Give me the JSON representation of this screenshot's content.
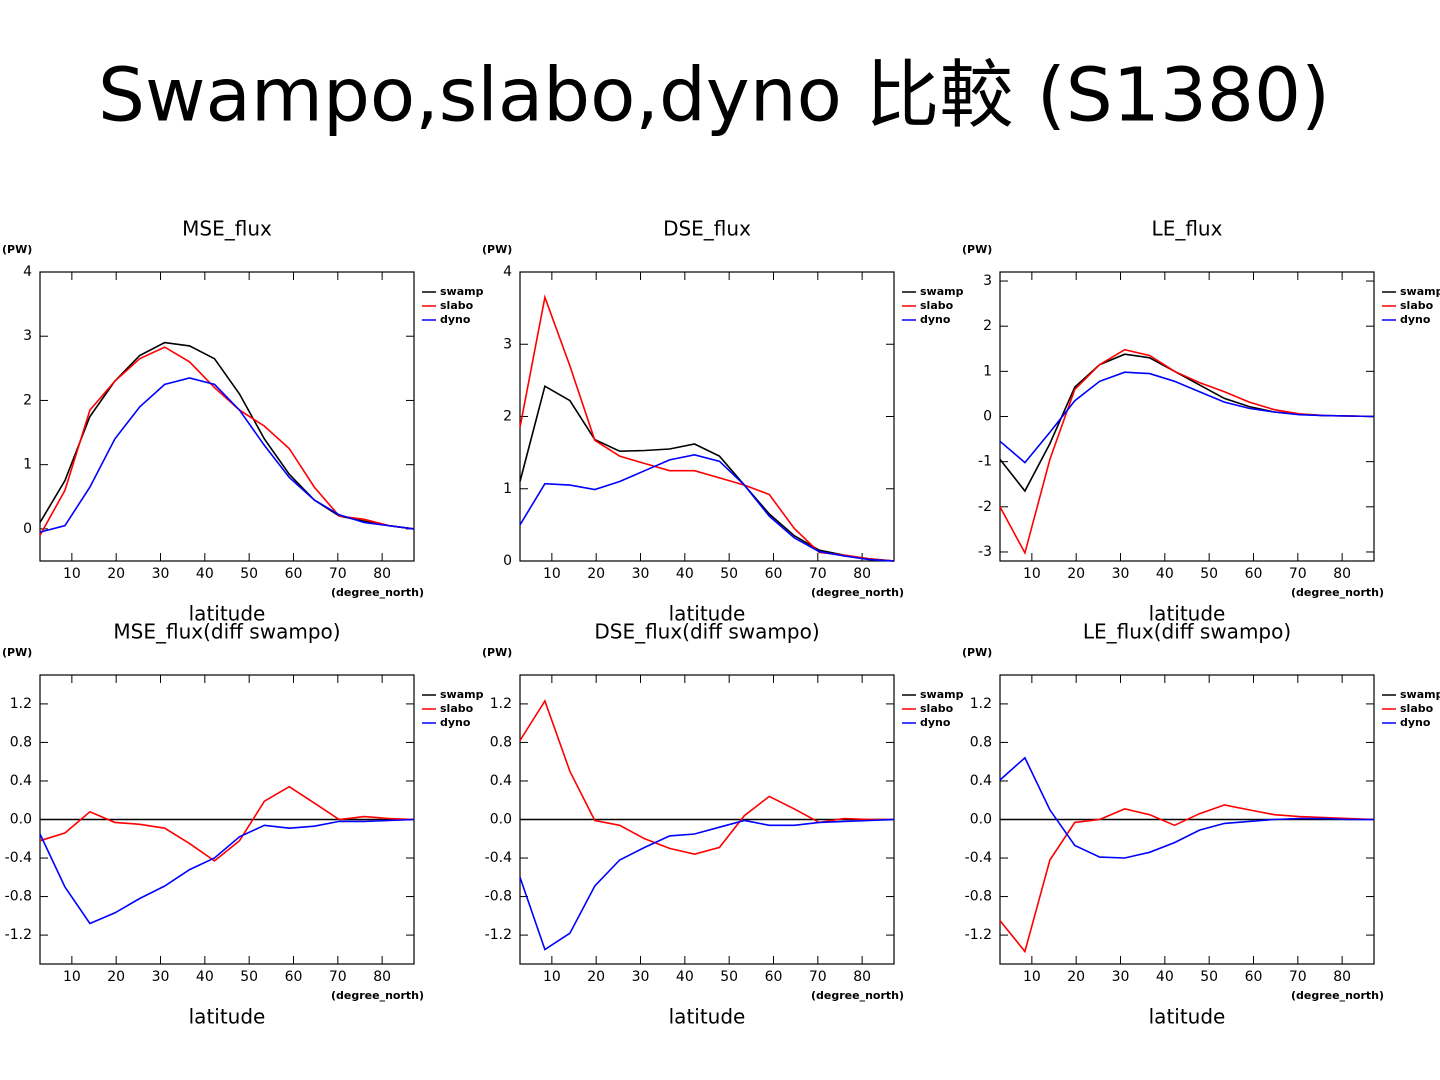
{
  "title": "Swampo,slabo,dyno 比較 (S1380)",
  "chart_data": [
    {
      "type": "line",
      "title": "MSE_flux",
      "y_unit": "(PW)",
      "x_label": "latitude",
      "x_unit": "(degree_north)",
      "x": [
        2.8125,
        8.4375,
        14.0625,
        19.6875,
        25.3125,
        30.9375,
        36.5625,
        42.1875,
        47.8125,
        53.4375,
        59.0625,
        64.6875,
        70.3125,
        75.9375,
        81.5625,
        87.1875
      ],
      "xlim": [
        2.8125,
        87.1875
      ],
      "xticks": [
        10,
        20,
        30,
        40,
        50,
        60,
        70,
        80
      ],
      "ylim": [
        -0.5,
        4
      ],
      "yticks": [
        0,
        1,
        2,
        3,
        4
      ],
      "series": [
        {
          "name": "swamp",
          "color": "#000000",
          "values": [
            0.1,
            0.75,
            1.75,
            2.3,
            2.7,
            2.9,
            2.85,
            2.65,
            2.1,
            1.4,
            0.85,
            0.45,
            0.2,
            0.12,
            0.05,
            0.0
          ]
        },
        {
          "name": "slabo",
          "color": "#ff0000",
          "values": [
            -0.1,
            0.6,
            1.85,
            2.3,
            2.65,
            2.83,
            2.6,
            2.2,
            1.85,
            1.6,
            1.25,
            0.65,
            0.2,
            0.15,
            0.05,
            0.0
          ]
        },
        {
          "name": "dyno",
          "color": "#0000ff",
          "values": [
            -0.05,
            0.05,
            0.65,
            1.4,
            1.9,
            2.25,
            2.35,
            2.25,
            1.85,
            1.3,
            0.8,
            0.45,
            0.22,
            0.1,
            0.05,
            0.0
          ]
        }
      ]
    },
    {
      "type": "line",
      "title": "DSE_flux",
      "y_unit": "(PW)",
      "x_label": "latitude",
      "x_unit": "(degree_north)",
      "x": [
        2.8125,
        8.4375,
        14.0625,
        19.6875,
        25.3125,
        30.9375,
        36.5625,
        42.1875,
        47.8125,
        53.4375,
        59.0625,
        64.6875,
        70.3125,
        75.9375,
        81.5625,
        87.1875
      ],
      "xlim": [
        2.8125,
        87.1875
      ],
      "xticks": [
        10,
        20,
        30,
        40,
        50,
        60,
        70,
        80
      ],
      "ylim": [
        0,
        4
      ],
      "yticks": [
        0,
        1,
        2,
        3,
        4
      ],
      "series": [
        {
          "name": "swamp",
          "color": "#000000",
          "values": [
            1.1,
            2.42,
            2.22,
            1.68,
            1.52,
            1.53,
            1.55,
            1.62,
            1.45,
            1.05,
            0.65,
            0.35,
            0.15,
            0.08,
            0.03,
            0.0
          ]
        },
        {
          "name": "slabo",
          "color": "#ff0000",
          "values": [
            1.85,
            3.65,
            2.7,
            1.67,
            1.45,
            1.35,
            1.25,
            1.25,
            1.15,
            1.05,
            0.92,
            0.45,
            0.12,
            0.08,
            0.03,
            0.0
          ]
        },
        {
          "name": "dyno",
          "color": "#0000ff",
          "values": [
            0.5,
            1.07,
            1.05,
            0.99,
            1.1,
            1.25,
            1.4,
            1.47,
            1.38,
            1.05,
            0.62,
            0.32,
            0.13,
            0.07,
            0.02,
            0.0
          ]
        }
      ]
    },
    {
      "type": "line",
      "title": "LE_flux",
      "y_unit": "(PW)",
      "x_label": "latitude",
      "x_unit": "(degree_north)",
      "x": [
        2.8125,
        8.4375,
        14.0625,
        19.6875,
        25.3125,
        30.9375,
        36.5625,
        42.1875,
        47.8125,
        53.4375,
        59.0625,
        64.6875,
        70.3125,
        75.9375,
        81.5625,
        87.1875
      ],
      "xlim": [
        2.8125,
        87.1875
      ],
      "xticks": [
        10,
        20,
        30,
        40,
        50,
        60,
        70,
        80
      ],
      "ylim": [
        -3.2,
        3.2
      ],
      "yticks": [
        -3,
        -2,
        -1,
        0,
        1,
        2,
        3
      ],
      "series": [
        {
          "name": "swamp",
          "color": "#000000",
          "values": [
            -0.95,
            -1.65,
            -0.6,
            0.65,
            1.15,
            1.38,
            1.3,
            1.0,
            0.7,
            0.4,
            0.22,
            0.1,
            0.05,
            0.02,
            0.01,
            0.0
          ]
        },
        {
          "name": "slabo",
          "color": "#ff0000",
          "values": [
            -2.0,
            -3.02,
            -0.95,
            0.6,
            1.15,
            1.48,
            1.35,
            1.0,
            0.75,
            0.55,
            0.32,
            0.15,
            0.06,
            0.02,
            0.01,
            0.0
          ]
        },
        {
          "name": "dyno",
          "color": "#0000ff",
          "values": [
            -0.55,
            -1.02,
            -0.35,
            0.35,
            0.78,
            0.98,
            0.95,
            0.78,
            0.55,
            0.32,
            0.18,
            0.1,
            0.04,
            0.02,
            0.01,
            0.0
          ]
        }
      ]
    },
    {
      "type": "line",
      "title": "MSE_flux(diff swampo)",
      "y_unit": "(PW)",
      "x_label": "latitude",
      "x_unit": "(degree_north)",
      "x": [
        2.8125,
        8.4375,
        14.0625,
        19.6875,
        25.3125,
        30.9375,
        36.5625,
        42.1875,
        47.8125,
        53.4375,
        59.0625,
        64.6875,
        70.3125,
        75.9375,
        81.5625,
        87.1875
      ],
      "xlim": [
        2.8125,
        87.1875
      ],
      "xticks": [
        10,
        20,
        30,
        40,
        50,
        60,
        70,
        80
      ],
      "ylim": [
        -1.5,
        1.5
      ],
      "yticks": [
        -1.2,
        -0.8,
        -0.4,
        {
          "value": 0,
          "label": "0.0"
        },
        0.4,
        0.8,
        1.2
      ],
      "series": [
        {
          "name": "swamp",
          "color": "#000000",
          "values": [
            0,
            0,
            0,
            0,
            0,
            0,
            0,
            0,
            0,
            0,
            0,
            0,
            0,
            0,
            0,
            0
          ]
        },
        {
          "name": "slabo",
          "color": "#ff0000",
          "values": [
            -0.22,
            -0.14,
            0.08,
            -0.03,
            -0.05,
            -0.09,
            -0.25,
            -0.43,
            -0.22,
            0.19,
            0.34,
            0.17,
            0.0,
            0.03,
            0.01,
            0.0
          ]
        },
        {
          "name": "dyno",
          "color": "#0000ff",
          "values": [
            -0.15,
            -0.7,
            -1.08,
            -0.97,
            -0.82,
            -0.69,
            -0.52,
            -0.4,
            -0.18,
            -0.06,
            -0.09,
            -0.07,
            -0.02,
            -0.02,
            -0.01,
            0.0
          ]
        }
      ]
    },
    {
      "type": "line",
      "title": "DSE_flux(diff swampo)",
      "y_unit": "(PW)",
      "x_label": "latitude",
      "x_unit": "(degree_north)",
      "x": [
        2.8125,
        8.4375,
        14.0625,
        19.6875,
        25.3125,
        30.9375,
        36.5625,
        42.1875,
        47.8125,
        53.4375,
        59.0625,
        64.6875,
        70.3125,
        75.9375,
        81.5625,
        87.1875
      ],
      "xlim": [
        2.8125,
        87.1875
      ],
      "xticks": [
        10,
        20,
        30,
        40,
        50,
        60,
        70,
        80
      ],
      "ylim": [
        -1.5,
        1.5
      ],
      "yticks": [
        -1.2,
        -0.8,
        -0.4,
        {
          "value": 0,
          "label": "0.0"
        },
        0.4,
        0.8,
        1.2
      ],
      "series": [
        {
          "name": "swamp",
          "color": "#000000",
          "values": [
            0,
            0,
            0,
            0,
            0,
            0,
            0,
            0,
            0,
            0,
            0,
            0,
            0,
            0,
            0,
            0
          ]
        },
        {
          "name": "slabo",
          "color": "#ff0000",
          "values": [
            0.82,
            1.23,
            0.5,
            -0.01,
            -0.06,
            -0.2,
            -0.3,
            -0.36,
            -0.29,
            0.04,
            0.24,
            0.11,
            -0.03,
            0.01,
            0.0,
            0.0
          ]
        },
        {
          "name": "dyno",
          "color": "#0000ff",
          "values": [
            -0.6,
            -1.35,
            -1.18,
            -0.69,
            -0.42,
            -0.29,
            -0.17,
            -0.15,
            -0.08,
            -0.01,
            -0.06,
            -0.06,
            -0.03,
            -0.02,
            -0.01,
            0.0
          ]
        }
      ]
    },
    {
      "type": "line",
      "title": "LE_flux(diff swampo)",
      "y_unit": "(PW)",
      "x_label": "latitude",
      "x_unit": "(degree_north)",
      "x": [
        2.8125,
        8.4375,
        14.0625,
        19.6875,
        25.3125,
        30.9375,
        36.5625,
        42.1875,
        47.8125,
        53.4375,
        59.0625,
        64.6875,
        70.3125,
        75.9375,
        81.5625,
        87.1875
      ],
      "xlim": [
        2.8125,
        87.1875
      ],
      "xticks": [
        10,
        20,
        30,
        40,
        50,
        60,
        70,
        80
      ],
      "ylim": [
        -1.5,
        1.5
      ],
      "yticks": [
        -1.2,
        -0.8,
        -0.4,
        {
          "value": 0,
          "label": "0.0"
        },
        0.4,
        0.8,
        1.2
      ],
      "series": [
        {
          "name": "swamp",
          "color": "#000000",
          "values": [
            0,
            0,
            0,
            0,
            0,
            0,
            0,
            0,
            0,
            0,
            0,
            0,
            0,
            0,
            0,
            0
          ]
        },
        {
          "name": "slabo",
          "color": "#ff0000",
          "values": [
            -1.05,
            -1.37,
            -0.42,
            -0.03,
            0.0,
            0.11,
            0.05,
            -0.06,
            0.06,
            0.15,
            0.1,
            0.05,
            0.03,
            0.02,
            0.01,
            0.0
          ]
        },
        {
          "name": "dyno",
          "color": "#0000ff",
          "values": [
            0.41,
            0.64,
            0.1,
            -0.27,
            -0.39,
            -0.4,
            -0.34,
            -0.24,
            -0.11,
            -0.04,
            -0.02,
            0.0,
            0.01,
            0.01,
            0.0,
            0.0
          ]
        }
      ]
    }
  ]
}
